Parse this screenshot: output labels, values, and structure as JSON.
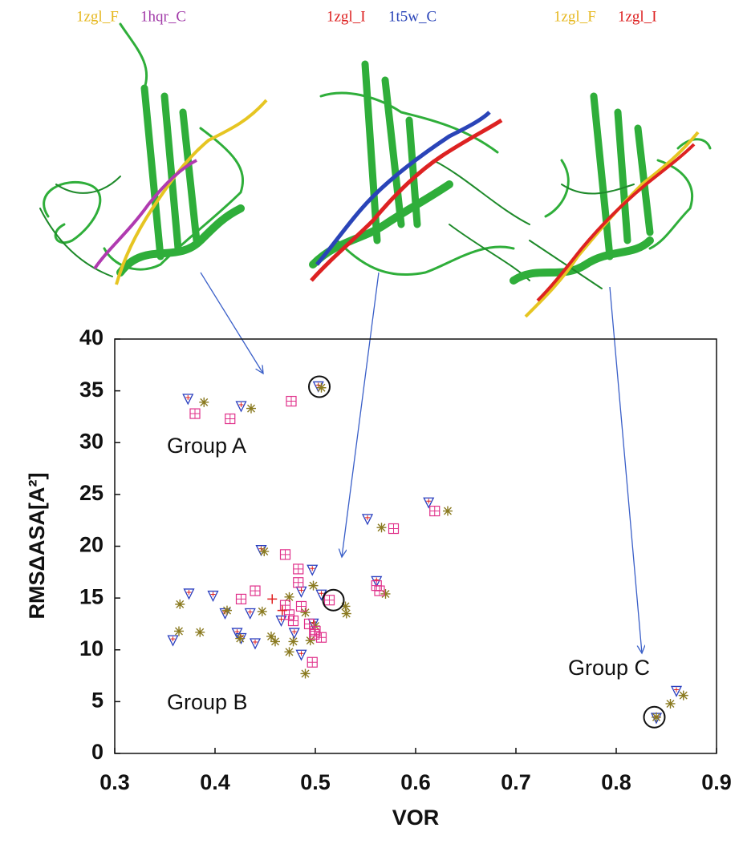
{
  "chart_data": {
    "type": "scatter",
    "xlabel": "VOR",
    "ylabel": "RMSΔASA[A²]",
    "xlim": [
      0.3,
      0.9
    ],
    "ylim": [
      0,
      40
    ],
    "xticks": [
      0.3,
      0.4,
      0.5,
      0.6,
      0.7,
      0.8,
      0.9
    ],
    "yticks": [
      0,
      5,
      10,
      15,
      20,
      25,
      30,
      35,
      40
    ],
    "grid": false,
    "annotations": [
      "Group A",
      "Group B",
      "Group C"
    ],
    "structures": [
      {
        "labels": [
          {
            "text": "1zgl_F",
            "color": "#e6b820"
          },
          {
            "text": "1hqr_C",
            "color": "#a13aa8"
          }
        ]
      },
      {
        "labels": [
          {
            "text": "1zgl_I",
            "color": "#dd2222"
          },
          {
            "text": "1t5w_C",
            "color": "#2a44b8"
          }
        ]
      },
      {
        "labels": [
          {
            "text": "1zgl_F",
            "color": "#e6b820"
          },
          {
            "text": "1zgl_I",
            "color": "#dd2222"
          }
        ]
      }
    ],
    "series": [
      {
        "marker": "triangle",
        "color": "#2a3fbf",
        "x": [
          0.373,
          0.426,
          0.503,
          0.374,
          0.398,
          0.41,
          0.435,
          0.422,
          0.426,
          0.358,
          0.44,
          0.446,
          0.497,
          0.486,
          0.466,
          0.479,
          0.486,
          0.498,
          0.506,
          0.552,
          0.561,
          0.613,
          0.86,
          0.84
        ],
        "values": [
          34.2,
          33.5,
          35.4,
          15.4,
          15.2,
          13.5,
          13.5,
          11.6,
          11.1,
          10.9,
          10.6,
          19.6,
          17.7,
          15.6,
          12.8,
          11.6,
          9.5,
          12.5,
          15.3,
          22.6,
          16.6,
          24.2,
          6.0,
          3.4
        ]
      },
      {
        "marker": "asterisk",
        "color": "#8a7a20",
        "x": [
          0.389,
          0.436,
          0.506,
          0.365,
          0.412,
          0.364,
          0.385,
          0.425,
          0.449,
          0.447,
          0.456,
          0.46,
          0.474,
          0.478,
          0.474,
          0.49,
          0.5,
          0.495,
          0.49,
          0.498,
          0.531,
          0.53,
          0.566,
          0.57,
          0.632,
          0.84,
          0.854,
          0.867
        ],
        "values": [
          33.9,
          33.3,
          35.3,
          14.4,
          13.8,
          11.8,
          11.7,
          11.1,
          19.5,
          13.7,
          11.3,
          10.8,
          9.8,
          10.8,
          15.1,
          13.6,
          12.3,
          10.9,
          7.7,
          16.2,
          13.5,
          14.2,
          21.8,
          15.4,
          23.4,
          3.5,
          4.8,
          5.6
        ]
      },
      {
        "marker": "square",
        "color": "#e0308a",
        "x": [
          0.38,
          0.415,
          0.476,
          0.47,
          0.483,
          0.483,
          0.44,
          0.426,
          0.47,
          0.486,
          0.474,
          0.494,
          0.478,
          0.5,
          0.506,
          0.497,
          0.514,
          0.561,
          0.564,
          0.578,
          0.619,
          0.499
        ],
        "values": [
          32.8,
          32.3,
          34.0,
          19.2,
          17.8,
          16.5,
          15.7,
          14.9,
          14.3,
          14.2,
          13.4,
          12.5,
          12.8,
          11.8,
          11.2,
          8.8,
          14.8,
          16.2,
          15.7,
          21.7,
          23.4,
          11.5
        ]
      },
      {
        "marker": "plus",
        "color": "#e02020",
        "x": [
          0.457,
          0.467
        ],
        "values": [
          14.9,
          13.8
        ]
      }
    ],
    "highlights": {
      "x": [
        0.504,
        0.518,
        0.838
      ],
      "values": [
        35.4,
        14.8,
        3.5
      ]
    }
  }
}
